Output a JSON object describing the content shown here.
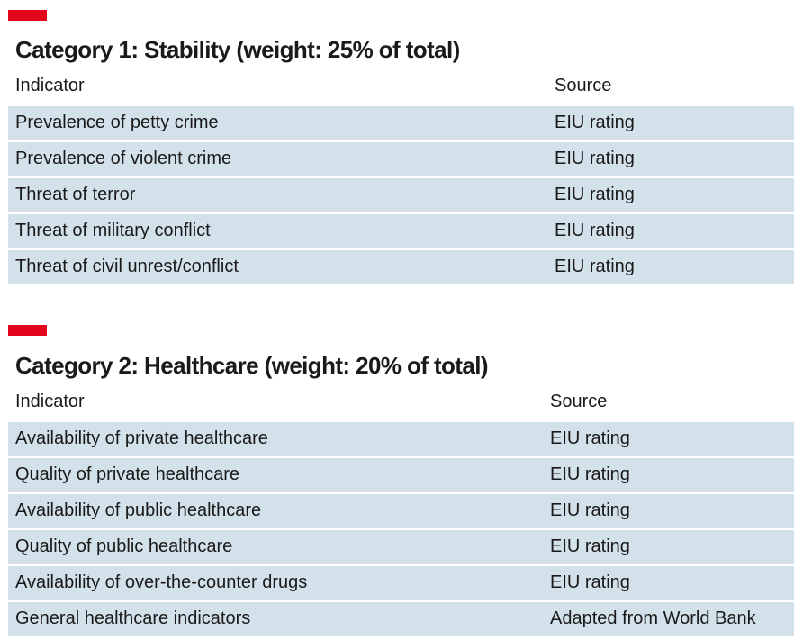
{
  "sections": [
    {
      "title": "Category 1: Stability (weight: 25% of total)",
      "header": {
        "indicator": "Indicator",
        "source": "Source"
      },
      "rows": [
        {
          "indicator": "Prevalence of petty crime",
          "source": "EIU rating"
        },
        {
          "indicator": "Prevalence of violent crime",
          "source": "EIU rating"
        },
        {
          "indicator": "Threat of terror",
          "source": "EIU rating"
        },
        {
          "indicator": "Threat of military conflict",
          "source": "EIU rating"
        },
        {
          "indicator": "Threat of civil unrest/conflict",
          "source": "EIU rating"
        }
      ]
    },
    {
      "title": "Category 2: Healthcare (weight: 20% of total)",
      "header": {
        "indicator": "Indicator",
        "source": "Source"
      },
      "rows": [
        {
          "indicator": "Availability of private healthcare",
          "source": "EIU rating"
        },
        {
          "indicator": "Quality of private healthcare",
          "source": "EIU rating"
        },
        {
          "indicator": "Availability of public healthcare",
          "source": "EIU rating"
        },
        {
          "indicator": "Quality of public healthcare",
          "source": "EIU rating"
        },
        {
          "indicator": "Availability of over-the-counter drugs",
          "source": "EIU rating"
        },
        {
          "indicator": "General healthcare indicators",
          "source": "Adapted from World Bank"
        }
      ]
    }
  ],
  "colors": {
    "accent": "#e3051b",
    "row_background": "#d3e1ea",
    "text": "#1a1a1a"
  }
}
